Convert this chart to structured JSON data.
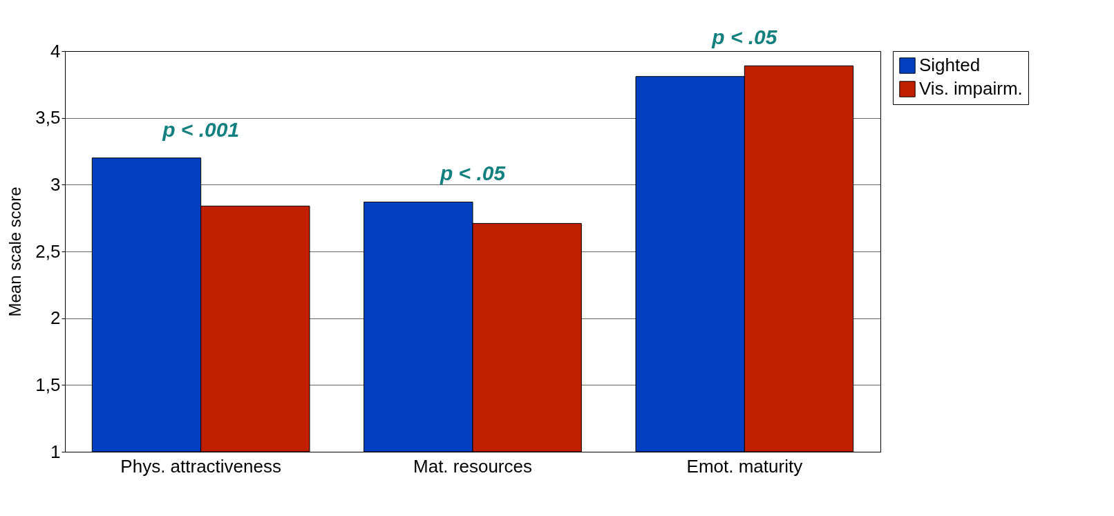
{
  "chart_data": {
    "type": "bar",
    "ylabel": "Mean scale score",
    "categories": [
      "Phys. attractiveness",
      "Mat. resources",
      "Emot. maturity"
    ],
    "series": [
      {
        "name": "Sighted",
        "color": "#0040c0",
        "values": [
          3.2,
          2.87,
          3.81
        ]
      },
      {
        "name": "Vis. impairm.",
        "color": "#c02000",
        "values": [
          2.84,
          2.71,
          3.89
        ]
      }
    ],
    "ylim": [
      1,
      4
    ],
    "yticks": [
      1,
      {
        "value": 1.5,
        "label": "1,5"
      },
      2,
      {
        "value": 2.5,
        "label": "2,5"
      },
      3,
      {
        "value": 3.5,
        "label": "3,5"
      },
      4
    ],
    "grid": "y",
    "legend": "right",
    "annotations": [
      {
        "text": "p < .001",
        "x": "Phys. attractiveness",
        "y": 3.2
      },
      {
        "text": "p < .05",
        "x": "Mat. resources",
        "y": 2.87
      },
      {
        "text": "p < .05",
        "x": "Emot. maturity",
        "y": 3.89
      }
    ]
  }
}
